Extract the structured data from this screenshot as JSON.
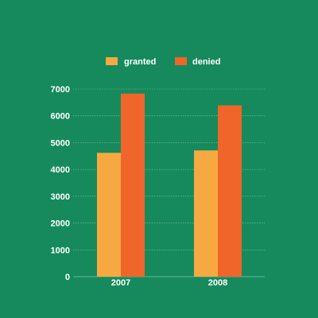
{
  "chart_data": {
    "type": "bar",
    "categories": [
      "2007",
      "2008"
    ],
    "series": [
      {
        "name": "granted",
        "values": [
          4620,
          4710
        ],
        "color": "#f7a941"
      },
      {
        "name": "denied",
        "values": [
          6830,
          6390
        ],
        "color": "#f06529"
      }
    ],
    "ylim": [
      0,
      7000
    ],
    "yticks": [
      0,
      1000,
      2000,
      3000,
      4000,
      5000,
      6000,
      7000
    ],
    "grid": true,
    "legend_position": "top-center",
    "background": "#168a5d"
  }
}
